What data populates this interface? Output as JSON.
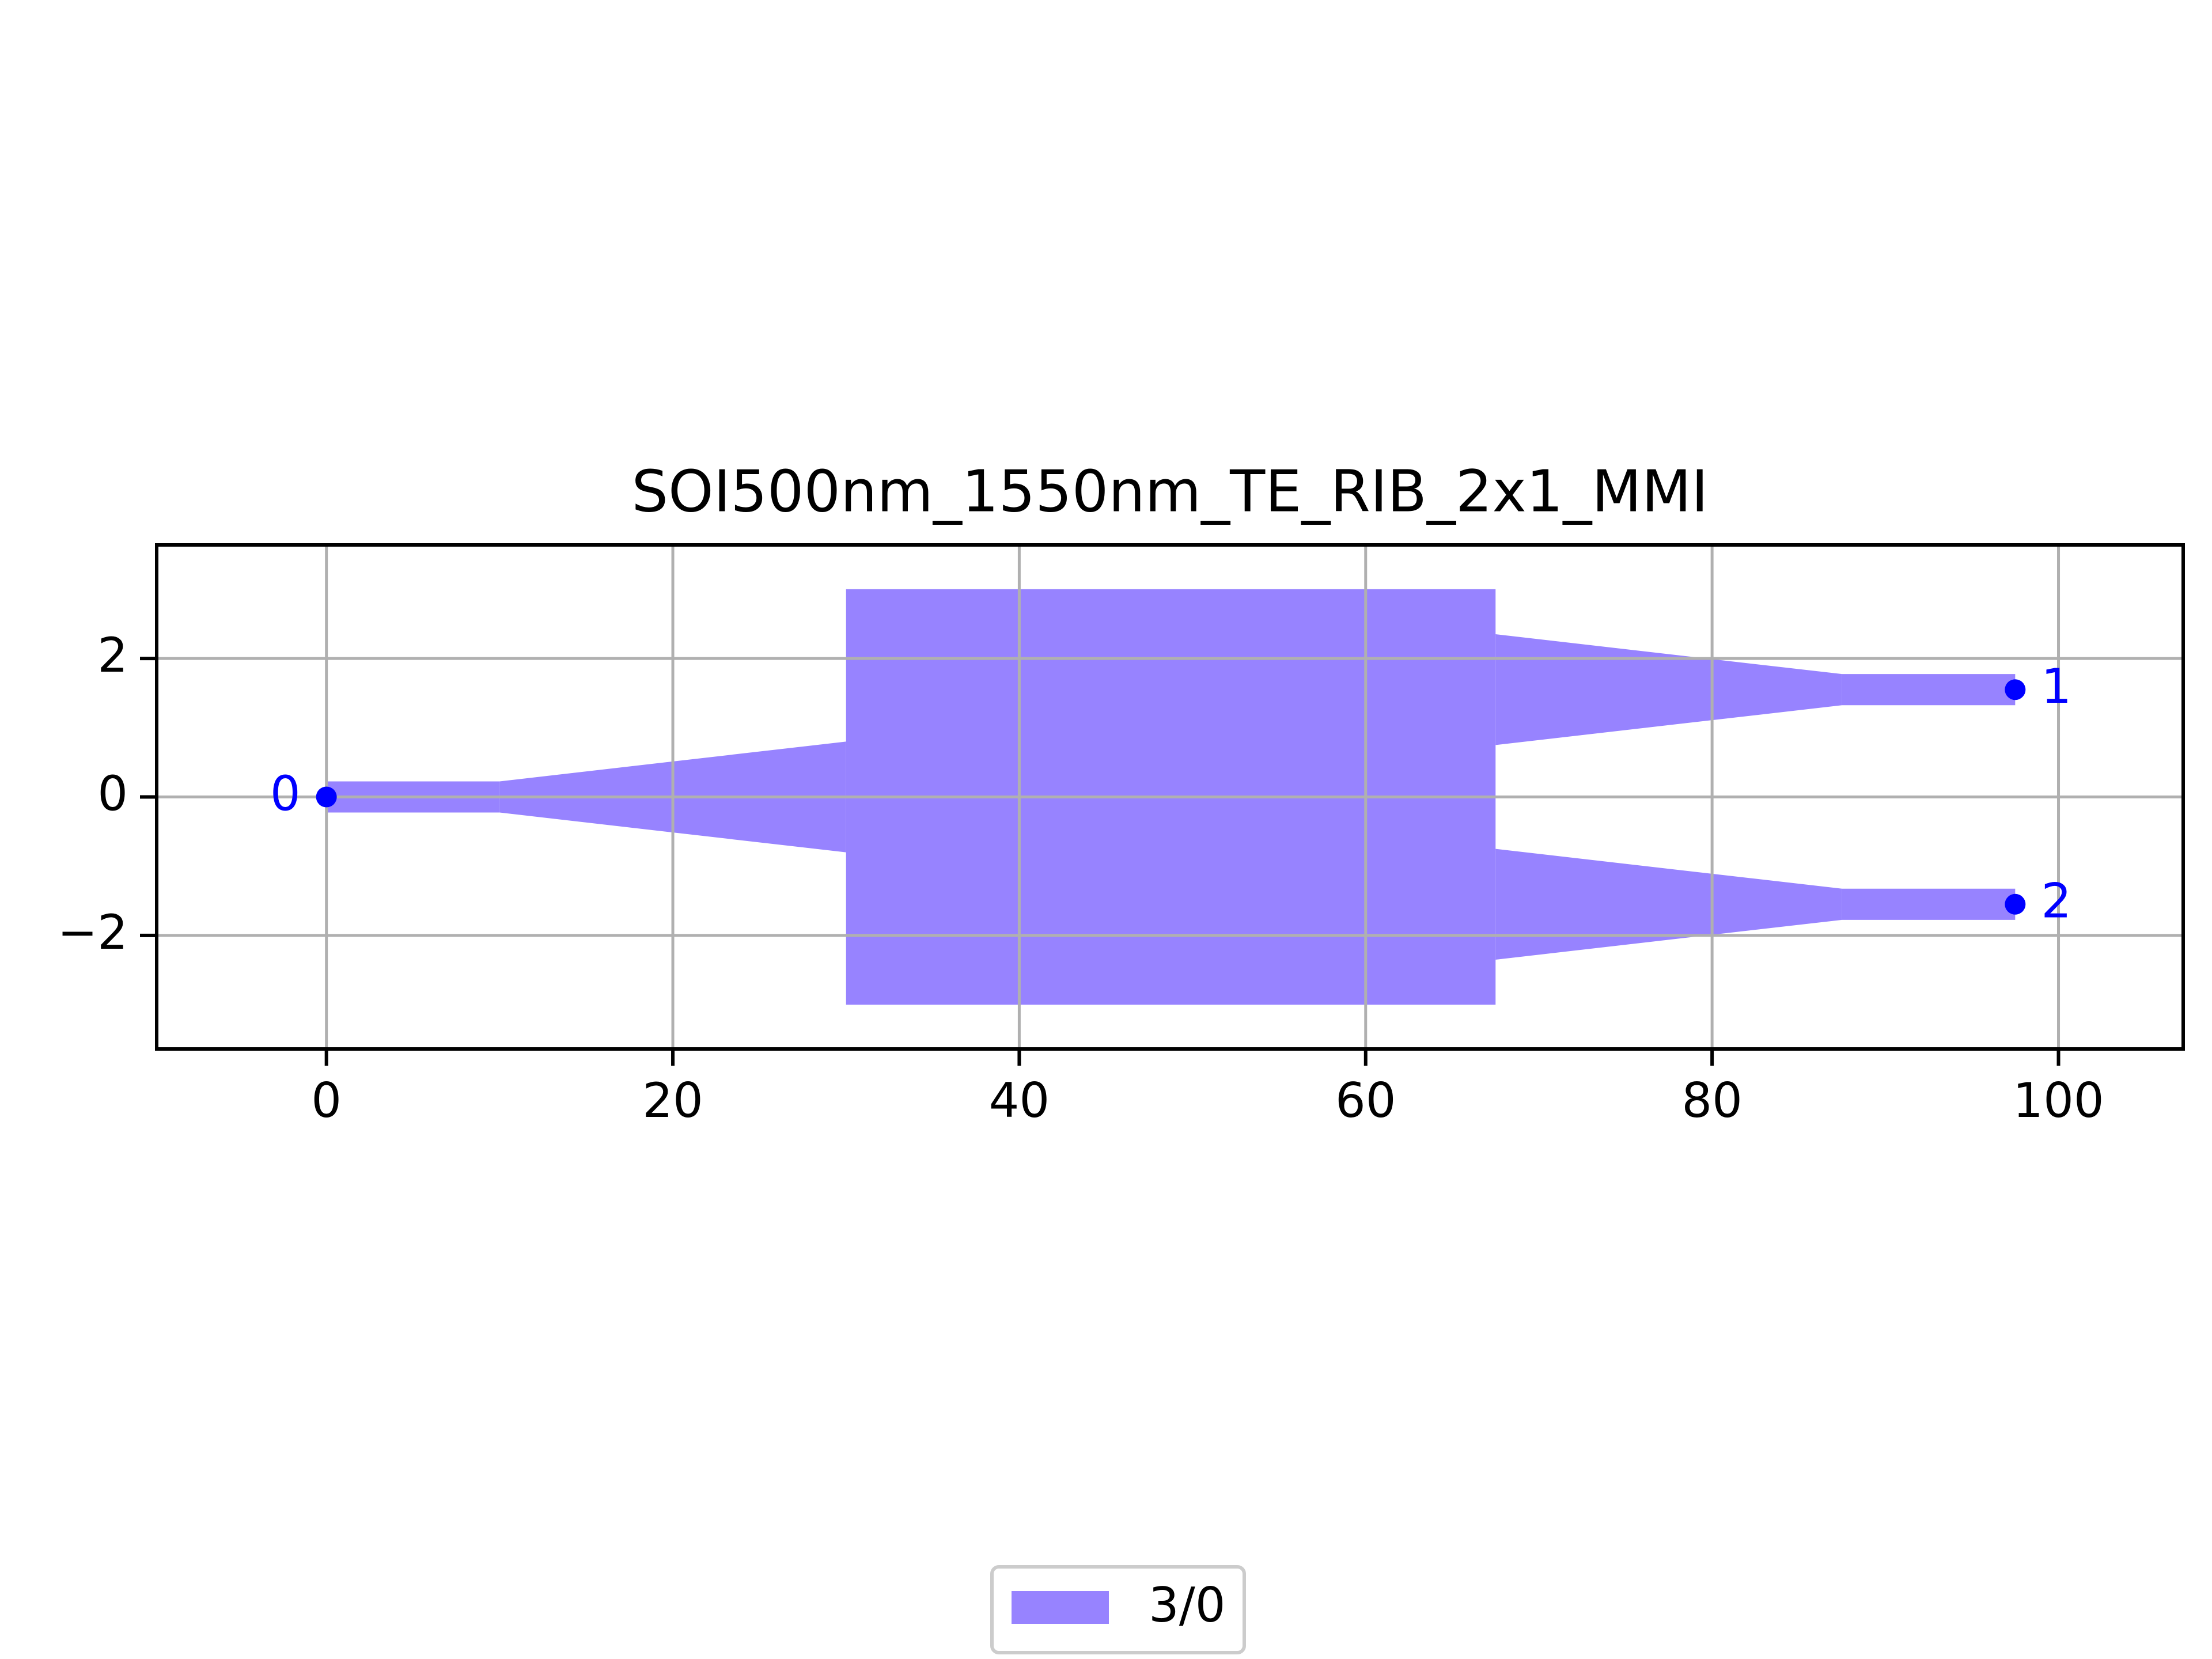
{
  "chart_data": {
    "type": "polygon",
    "title": "SOI500nm_1550nm_TE_RIB_2x1_MMI",
    "xlim": [
      -9.8,
      107.2
    ],
    "ylim": [
      -3.64,
      3.64
    ],
    "xticks": [
      0,
      20,
      40,
      60,
      80,
      100
    ],
    "yticks": [
      {
        "value": -2,
        "label": "−2"
      },
      0,
      2
    ],
    "grid": true,
    "series": [
      {
        "name": "3/0",
        "color": "#9783ff",
        "polygons": [
          {
            "x": [
              0,
              10,
              10,
              0
            ],
            "y": [
              -0.225,
              -0.225,
              0.225,
              0.225
            ]
          },
          {
            "x": [
              10,
              30,
              30,
              10
            ],
            "y": [
              -0.225,
              -0.8,
              0.8,
              0.225
            ]
          },
          {
            "x": [
              30,
              67.5,
              67.5,
              30
            ],
            "y": [
              -3,
              -3,
              3,
              3
            ]
          },
          {
            "x": [
              67.5,
              87.5,
              87.5,
              67.5
            ],
            "y": [
              0.75,
              1.325,
              1.775,
              2.35
            ]
          },
          {
            "x": [
              87.5,
              97.5,
              97.5,
              87.5
            ],
            "y": [
              1.325,
              1.325,
              1.775,
              1.775
            ]
          },
          {
            "x": [
              67.5,
              87.5,
              87.5,
              67.5
            ],
            "y": [
              -2.35,
              -1.775,
              -1.325,
              -0.75
            ]
          },
          {
            "x": [
              87.5,
              97.5,
              97.5,
              87.5
            ],
            "y": [
              -1.775,
              -1.775,
              -1.325,
              -1.325
            ]
          }
        ]
      }
    ],
    "ports": {
      "color": "#0000ff",
      "x": [
        0,
        97.5,
        97.5
      ],
      "y": [
        0,
        1.55,
        -1.55
      ],
      "labels": [
        "0",
        "1",
        "2"
      ]
    }
  }
}
